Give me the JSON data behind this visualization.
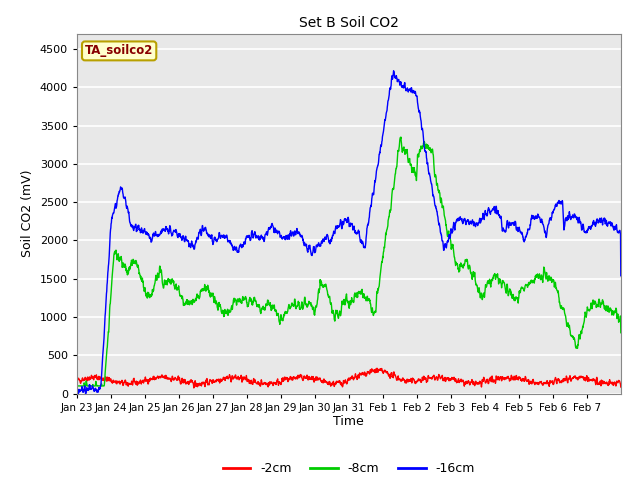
{
  "title": "Set B Soil CO2",
  "xlabel": "Time",
  "ylabel": "Soil CO2 (mV)",
  "legend_label": "TA_soilco2",
  "series_labels": [
    "-2cm",
    "-8cm",
    "-16cm"
  ],
  "series_colors": [
    "#ff0000",
    "#00cc00",
    "#0000ff"
  ],
  "ylim": [
    0,
    4700
  ],
  "yticks": [
    0,
    500,
    1000,
    1500,
    2000,
    2500,
    3000,
    3500,
    4000,
    4500
  ],
  "xtick_labels": [
    "Jan 23",
    "Jan 24",
    "Jan 25",
    "Jan 26",
    "Jan 27",
    "Jan 28",
    "Jan 29",
    "Jan 30",
    "Jan 31",
    "Feb 1",
    "Feb 2",
    "Feb 3",
    "Feb 4",
    "Feb 5",
    "Feb 6",
    "Feb 7"
  ],
  "fig_bg_color": "#ffffff",
  "plot_bg_color": "#e8e8e8",
  "grid_color": "#ffffff",
  "band_colors": [
    "#dcdcdc",
    "#e8e8e8"
  ],
  "label_box_facecolor": "#ffffcc",
  "label_box_edgecolor": "#b8a000",
  "label_text_color": "#880000",
  "linewidth": 1.0
}
